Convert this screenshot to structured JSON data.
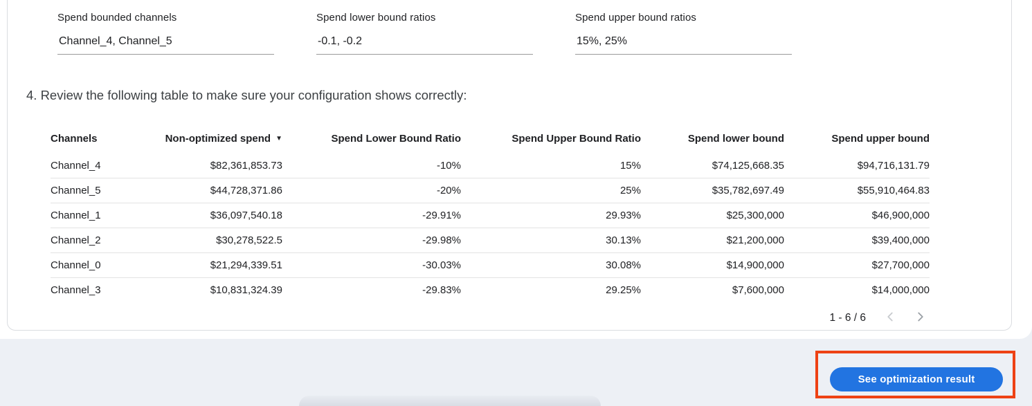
{
  "colors": {
    "button_blue": "#2274e1",
    "highlight_red": "#ee4214",
    "page_background": "#edf0f5",
    "card_border": "#dadce0"
  },
  "fields": [
    {
      "label": "Spend bounded channels",
      "value": "Channel_4, Channel_5"
    },
    {
      "label": "Spend lower bound ratios",
      "value": "-0.1, -0.2"
    },
    {
      "label": "Spend upper bound ratios",
      "value": "15%, 25%"
    }
  ],
  "section": {
    "instruction": "4. Review the following table to make sure your configuration shows correctly:"
  },
  "table": {
    "columns": [
      {
        "label": "Channels",
        "sorted": false
      },
      {
        "label": "Non-optimized spend",
        "sorted": true,
        "sort_icon": "▼"
      },
      {
        "label": "Spend Lower Bound Ratio",
        "sorted": false
      },
      {
        "label": "Spend Upper Bound Ratio",
        "sorted": false
      },
      {
        "label": "Spend lower bound",
        "sorted": false
      },
      {
        "label": "Spend upper bound",
        "sorted": false
      }
    ],
    "rows": [
      [
        "Channel_4",
        "$82,361,853.73",
        "-10%",
        "15%",
        "$74,125,668.35",
        "$94,716,131.79"
      ],
      [
        "Channel_5",
        "$44,728,371.86",
        "-20%",
        "25%",
        "$35,782,697.49",
        "$55,910,464.83"
      ],
      [
        "Channel_1",
        "$36,097,540.18",
        "-29.91%",
        "29.93%",
        "$25,300,000",
        "$46,900,000"
      ],
      [
        "Channel_2",
        "$30,278,522.5",
        "-29.98%",
        "30.13%",
        "$21,200,000",
        "$39,400,000"
      ],
      [
        "Channel_0",
        "$21,294,339.51",
        "-30.03%",
        "30.08%",
        "$14,900,000",
        "$27,700,000"
      ],
      [
        "Channel_3",
        "$10,831,324.39",
        "-29.83%",
        "29.25%",
        "$7,600,000",
        "$14,000,000"
      ]
    ],
    "pagination": {
      "range_label": "1 - 6 / 6"
    }
  },
  "footer": {
    "see_result_label": "See optimization result"
  }
}
